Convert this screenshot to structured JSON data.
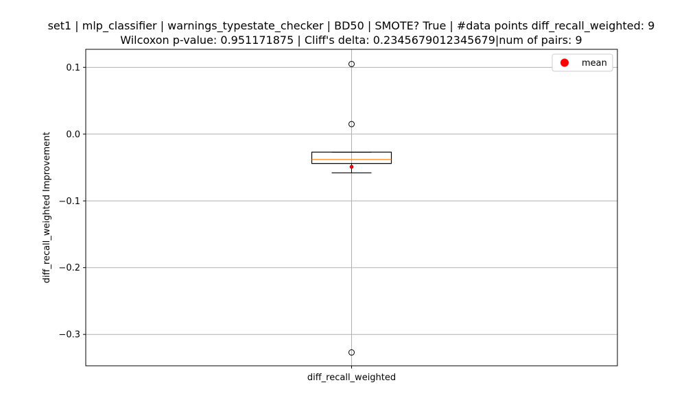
{
  "chart_data": {
    "type": "box",
    "title_line1": "set1 | mlp_classifier | warnings_typestate_checker | BD50 | SMOTE? True | #data points diff_recall_weighted: 9",
    "title_line2": "Wilcoxon p-value: 0.951171875 | Cliff's delta: 0.2345679012345679|num of pairs: 9",
    "xlabel": "",
    "ylabel": "diff_recall_weighted Improvement",
    "categories": [
      "diff_recall_weighted"
    ],
    "ylim": [
      -0.347,
      0.127
    ],
    "yticks": [
      -0.3,
      -0.2,
      -0.1,
      0.0,
      0.1
    ],
    "ytick_labels": [
      "−0.3",
      "−0.2",
      "−0.1",
      "0.0",
      "0.1"
    ],
    "grid": true,
    "box": {
      "whisker_low": -0.058,
      "q1": -0.044,
      "median": -0.038,
      "q3": -0.027,
      "whisker_high": -0.027,
      "mean": -0.049,
      "outliers": [
        0.105,
        0.015,
        -0.327
      ]
    },
    "legend": {
      "position": "top-right",
      "entries": [
        "mean"
      ]
    },
    "colors": {
      "median": "#ff7f0e",
      "mean": "#ff0000",
      "box": "#000000",
      "grid": "#b0b0b0"
    }
  }
}
